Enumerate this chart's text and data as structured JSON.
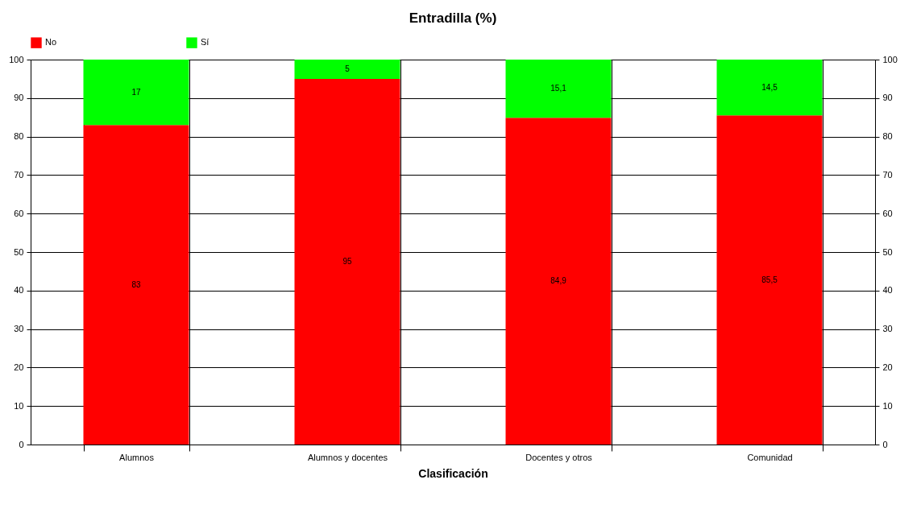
{
  "chart_data": {
    "type": "bar",
    "title": "Entradilla (%)",
    "xlabel": "Clasificación",
    "categories": [
      "Alumnos",
      "Alumnos y docentes",
      "Docentes y otros",
      "Comunidad"
    ],
    "stacked": true,
    "series": [
      {
        "name": "No",
        "color": "#ff0000",
        "values": [
          83,
          95,
          84.9,
          85.5
        ],
        "value_labels": [
          "83",
          "95",
          "84,9",
          "85,5"
        ]
      },
      {
        "name": "Sí",
        "color": "#00ff00",
        "values": [
          17,
          5,
          15.1,
          14.5
        ],
        "value_labels": [
          "17",
          "5",
          "15,1",
          "14,5"
        ]
      }
    ],
    "ylim": [
      0,
      100
    ],
    "yticks": [
      0,
      10,
      20,
      30,
      40,
      50,
      60,
      70,
      80,
      90,
      100
    ],
    "y2lim": [
      0,
      100
    ],
    "y2ticks": [
      0,
      10,
      20,
      30,
      40,
      50,
      60,
      70,
      80,
      90,
      100
    ],
    "grid": true,
    "legend": "top"
  }
}
